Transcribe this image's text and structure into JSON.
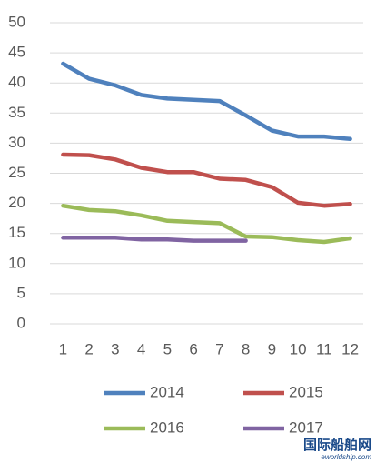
{
  "chart_data": {
    "type": "line",
    "categories": [
      1,
      2,
      3,
      4,
      5,
      6,
      7,
      8,
      9,
      10,
      11,
      12
    ],
    "series": [
      {
        "name": "2014",
        "color": "#4f81bd",
        "values": [
          43.2,
          40.7,
          39.6,
          38.0,
          37.4,
          37.2,
          37.0,
          34.6,
          32.1,
          31.1,
          31.1,
          30.7
        ]
      },
      {
        "name": "2015",
        "color": "#c0504d",
        "values": [
          28.1,
          28.0,
          27.3,
          25.9,
          25.2,
          25.2,
          24.1,
          23.9,
          22.7,
          20.1,
          19.6,
          19.9
        ]
      },
      {
        "name": "2016",
        "color": "#9bbb59",
        "values": [
          19.6,
          18.9,
          18.7,
          18.0,
          17.1,
          16.9,
          16.7,
          14.5,
          14.4,
          13.9,
          13.6,
          14.2
        ]
      },
      {
        "name": "2017",
        "color": "#8064a2",
        "values": [
          14.3,
          14.3,
          14.3,
          14.0,
          14.0,
          13.8,
          13.8,
          13.8,
          null,
          null,
          null,
          null
        ]
      }
    ],
    "ylim": [
      0,
      50
    ],
    "yticks": [
      0,
      5,
      10,
      15,
      20,
      25,
      30,
      35,
      40,
      45,
      50
    ],
    "grid": true,
    "legend": "bottom",
    "watermark": "国际船舶网",
    "watermark_url": "eworldship.com"
  }
}
